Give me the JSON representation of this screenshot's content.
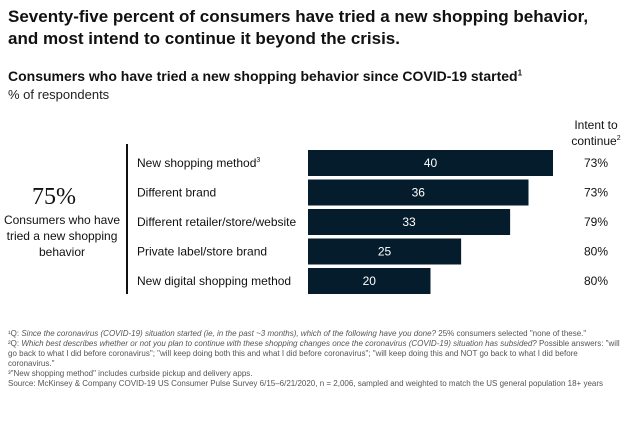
{
  "headline": "Seventy-five percent of consumers have tried a new shopping behavior, and most intend to continue it beyond the crisis.",
  "chart_title": "Consumers who have tried a new shopping behavior since COVID-19 started",
  "chart_title_sup": "1",
  "chart_subtitle": "% of respondents",
  "callout": {
    "value": "75%",
    "caption": "Consumers who have tried a new shopping behavior"
  },
  "intent_header": "Intent to continue",
  "intent_header_sup": "2",
  "colors": {
    "bar": "#051c2c",
    "bar_text": "#ffffff",
    "text": "#111111"
  },
  "chart_data": {
    "type": "bar",
    "orientation": "horizontal",
    "title": "Consumers who have tried a new shopping behavior since COVID-19 started",
    "unit": "% of respondents",
    "categories": [
      "New shopping method",
      "Different brand",
      "Different retailer/store/website",
      "Private label/store brand",
      "New digital shopping method"
    ],
    "category_sups": [
      "3",
      "",
      "",
      "",
      ""
    ],
    "values": [
      40,
      36,
      33,
      25,
      20
    ],
    "intent_to_continue": [
      "73%",
      "73%",
      "79%",
      "80%",
      "80%"
    ],
    "xlim": [
      0,
      40
    ]
  },
  "footnotes": [
    {
      "marker": "¹Q: ",
      "question": "Since the coronavirus (COVID-19) situation started (ie, in the past ~3 months), which of the following have you done?",
      "text": " 25% consumers selected \"none of these.\""
    },
    {
      "marker": "²Q: ",
      "question": "Which best describes whether or not you plan to continue with these shopping changes once the coronavirus (COVID-19) situation has subsided?",
      "text": " Possible answers: \"will go back to what I did before coronavirus\"; \"will keep doing both this and what I did before coronavirus\"; \"will keep doing this and NOT go back to what I did before coronavirus.\""
    },
    {
      "marker": "³",
      "question": "",
      "text": "\"New shopping method\" includes curbside pickup and delivery apps."
    },
    {
      "marker": "",
      "question": "",
      "text": "Source: McKinsey & Company COVID-19 US Consumer Pulse Survey 6/15–6/21/2020, n = 2,006, sampled and weighted to match the US general population 18+ years"
    }
  ]
}
